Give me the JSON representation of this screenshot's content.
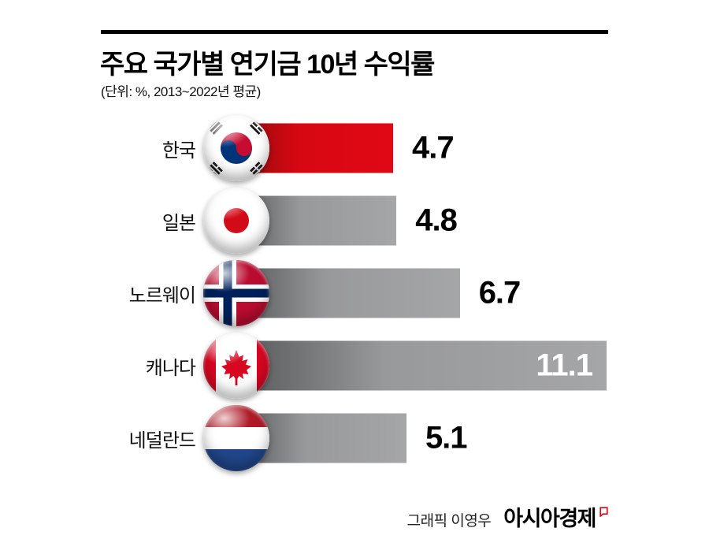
{
  "header": {
    "title": "주요 국가별 연기금 10년 수익률",
    "subtitle": "(단위: %, 2013~2022년 평균)"
  },
  "chart_data": {
    "type": "bar",
    "orientation": "horizontal",
    "title": "주요 국가별 연기금 10년 수익률",
    "subtitle": "(단위: %, 2013~2022년 평균)",
    "unit": "%",
    "period": "2013~2022년 평균",
    "categories": [
      "한국",
      "일본",
      "노르웨이",
      "캐나다",
      "네덜란드"
    ],
    "values": [
      4.7,
      4.8,
      6.7,
      11.1,
      5.1
    ],
    "value_labels": [
      "4.7",
      "4.8",
      "6.7",
      "11.1",
      "5.1"
    ],
    "xlim": [
      0,
      11.8
    ],
    "grid": false,
    "legend": "none",
    "highlight_index": 0,
    "value_label_position": [
      "outside",
      "outside",
      "outside",
      "inside",
      "outside"
    ],
    "colors": {
      "highlight_bar": "#d70812",
      "default_bar": "#9c9d9f",
      "value_text": "#000000",
      "value_text_inside": "#ffffff",
      "rule": "#000000"
    },
    "flags": [
      "korea-flag",
      "japan-flag",
      "norway-flag",
      "canada-flag",
      "netherlands-flag"
    ]
  },
  "footer": {
    "credit": "그래픽 이영우",
    "brand": "아시아경제",
    "brand_mark_color": "#e60012"
  }
}
